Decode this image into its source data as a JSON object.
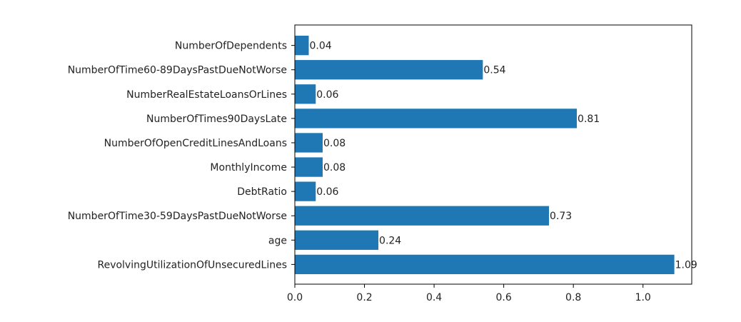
{
  "colors": {
    "bar": "#1f77b4",
    "axis": "#000000",
    "text": "#222222",
    "background": "#ffffff"
  },
  "chart_data": {
    "type": "bar",
    "orientation": "horizontal",
    "categories": [
      "RevolvingUtilizationOfUnsecuredLines",
      "age",
      "NumberOfTime30-59DaysPastDueNotWorse",
      "DebtRatio",
      "MonthlyIncome",
      "NumberOfOpenCreditLinesAndLoans",
      "NumberOfTimes90DaysLate",
      "NumberRealEstateLoansOrLines",
      "NumberOfTime60-89DaysPastDueNotWorse",
      "NumberOfDependents"
    ],
    "values": [
      1.09,
      0.24,
      0.73,
      0.06,
      0.08,
      0.08,
      0.81,
      0.06,
      0.54,
      0.04
    ],
    "value_labels": [
      "1.09",
      "0.24",
      "0.73",
      "0.06",
      "0.08",
      "0.08",
      "0.81",
      "0.06",
      "0.54",
      "0.04"
    ],
    "xticks": [
      "0.0",
      "0.2",
      "0.4",
      "0.6",
      "0.8",
      "1.0"
    ],
    "xlim": [
      0,
      1.14
    ],
    "title": "",
    "xlabel": "",
    "ylabel": "",
    "grid": false,
    "legend": "none"
  }
}
